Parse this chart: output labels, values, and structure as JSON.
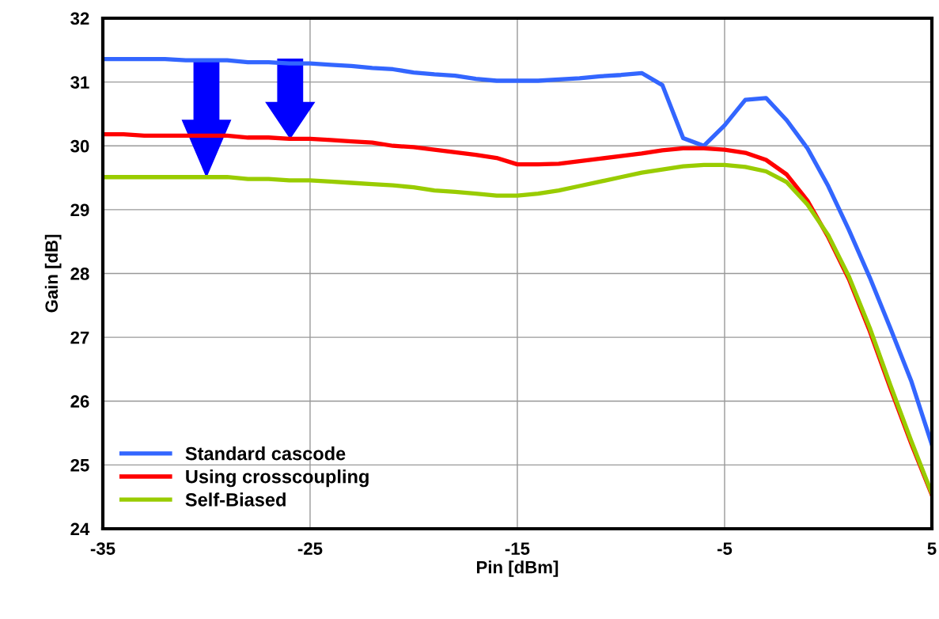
{
  "chart_data": {
    "type": "line",
    "xlabel": "Pin [dBm]",
    "ylabel": "Gain [dB]",
    "x": [
      -35,
      -34,
      -33,
      -32,
      -31,
      -30,
      -29,
      -28,
      -27,
      -26,
      -25,
      -24,
      -23,
      -22,
      -21,
      -20,
      -19,
      -18,
      -17,
      -16,
      -15,
      -14,
      -13,
      -12,
      -11,
      -10,
      -9,
      -8,
      -7,
      -6,
      -5,
      -4,
      -3,
      -2,
      -1,
      0,
      1,
      2,
      3,
      4,
      5
    ],
    "series": [
      {
        "name": "Standard cascode",
        "color": "#3366ff",
        "values": [
          31.36,
          31.36,
          31.36,
          31.36,
          31.34,
          31.34,
          31.34,
          31.31,
          31.31,
          31.29,
          31.29,
          31.27,
          31.25,
          31.22,
          31.2,
          31.15,
          31.12,
          31.1,
          31.05,
          31.02,
          31.02,
          31.02,
          31.04,
          31.06,
          31.09,
          31.11,
          31.14,
          30.95,
          30.12,
          30.0,
          30.32,
          30.72,
          30.75,
          30.4,
          29.96,
          29.37,
          28.68,
          27.94,
          27.14,
          26.32,
          25.32
        ]
      },
      {
        "name": "Using crosscoupling",
        "color": "#ff0000",
        "values": [
          30.18,
          30.18,
          30.16,
          30.16,
          30.16,
          30.16,
          30.16,
          30.13,
          30.13,
          30.11,
          30.11,
          30.09,
          30.07,
          30.05,
          30.0,
          29.98,
          29.94,
          29.9,
          29.86,
          29.81,
          29.71,
          29.71,
          29.72,
          29.76,
          29.8,
          29.84,
          29.88,
          29.93,
          29.96,
          29.96,
          29.94,
          29.89,
          29.78,
          29.55,
          29.14,
          28.57,
          27.91,
          27.1,
          26.2,
          25.34,
          24.53
        ]
      },
      {
        "name": "Self-Biased",
        "color": "#99cc00",
        "values": [
          29.51,
          29.51,
          29.51,
          29.51,
          29.51,
          29.51,
          29.51,
          29.48,
          29.48,
          29.46,
          29.46,
          29.44,
          29.42,
          29.4,
          29.38,
          29.35,
          29.3,
          29.28,
          29.25,
          29.22,
          29.22,
          29.25,
          29.3,
          29.37,
          29.44,
          29.51,
          29.58,
          29.63,
          29.68,
          29.7,
          29.7,
          29.67,
          29.6,
          29.43,
          29.08,
          28.6,
          27.95,
          27.15,
          26.25,
          25.38,
          24.55
        ]
      }
    ],
    "xlim": [
      -35,
      5
    ],
    "xticks": [
      -35,
      -25,
      -15,
      -5,
      5
    ],
    "ylim": [
      24,
      32
    ],
    "yticks": [
      24,
      25,
      26,
      27,
      28,
      29,
      30,
      31,
      32
    ],
    "grid": true,
    "legend": "bottom left",
    "marker": "none",
    "line_style": "solid"
  }
}
